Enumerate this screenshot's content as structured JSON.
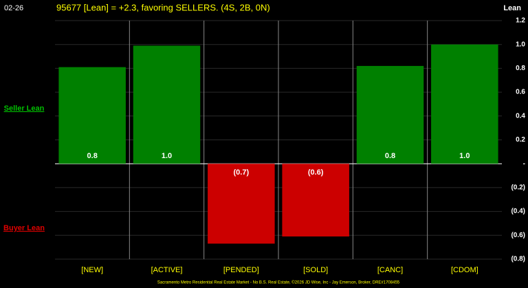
{
  "chart_data": {
    "type": "bar",
    "date": "02-26",
    "title": "95677 [Lean] = +2.3, favoring SELLERS. (4S, 2B, 0N)",
    "y_axis_label": "Lean",
    "upper_label": "Seller Lean",
    "lower_label": "Buyer Lean",
    "footer": "Sacramento Metro Residential Real Estate Market - No B.S. Real Estate, ©2026 JD Wise, Inc - Jay Emerson, Broker, DRE#1708455",
    "categories": [
      "[NEW]",
      "[ACTIVE]",
      "[PENDED]",
      "[SOLD]",
      "[CANC]",
      "[CDOM]"
    ],
    "values": [
      0.81,
      0.99,
      -0.67,
      -0.61,
      0.82,
      1.0
    ],
    "value_labels": [
      "0.8",
      "1.0",
      "(0.7)",
      "(0.6)",
      "0.8",
      "1.0"
    ],
    "color": "#008000",
    "negative_color": "#cc0000",
    "ylim": [
      -0.8,
      1.2
    ],
    "yticks": [
      1.2,
      {
        "value": 1.0,
        "label": "1.0"
      },
      0.8,
      0.6,
      0.4,
      0.2,
      {
        "value": 0,
        "label": "-"
      },
      {
        "value": -0.2,
        "label": "(0.2)"
      },
      {
        "value": -0.4,
        "label": "(0.4)"
      },
      {
        "value": -0.6,
        "label": "(0.6)"
      },
      {
        "value": -0.8,
        "label": "(0.8)"
      }
    ],
    "grid": true
  }
}
